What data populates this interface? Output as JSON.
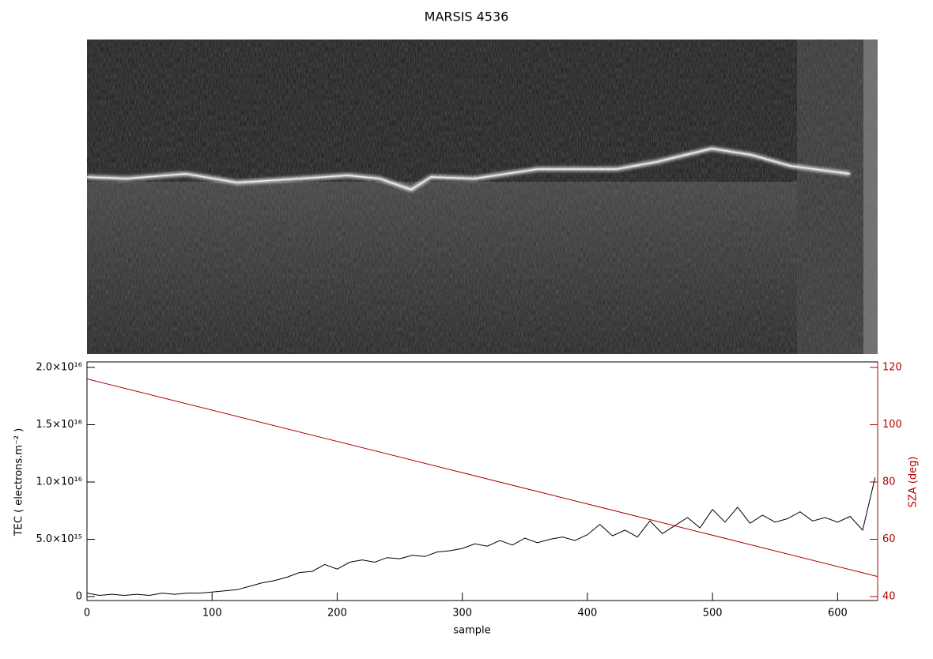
{
  "chart_data": {
    "type": "line",
    "title": "MARSIS 4536",
    "xlabel": "sample",
    "ylabel": "TEC ( electrons.m⁻² )",
    "y2label": "SZA (deg)",
    "xlim": [
      0,
      632
    ],
    "xticks": [
      0,
      100,
      200,
      300,
      400,
      500,
      600
    ],
    "ylim": [
      0,
      2e+16
    ],
    "yticks": [
      0,
      {
        "value": 5000000000000000.0,
        "label": "5.0×10¹⁵"
      },
      {
        "value": 1e+16,
        "label": "1.0×10¹⁶"
      },
      {
        "value": 1.5e+16,
        "label": "1.5×10¹⁶"
      },
      {
        "value": 2e+16,
        "label": "2.0×10¹⁶"
      }
    ],
    "y2lim": [
      40,
      120
    ],
    "y2ticks": [
      40,
      60,
      80,
      100,
      120
    ],
    "series": [
      {
        "color": "#000000",
        "x": [
          0,
          10,
          20,
          30,
          40,
          50,
          60,
          70,
          80,
          90,
          100,
          110,
          120,
          130,
          140,
          150,
          160,
          170,
          180,
          190,
          200,
          210,
          220,
          230,
          240,
          250,
          260,
          270,
          280,
          290,
          300,
          310,
          320,
          330,
          340,
          350,
          360,
          370,
          380,
          390,
          400,
          410,
          420,
          430,
          440,
          450,
          460,
          470,
          480,
          490,
          500,
          510,
          520,
          530,
          540,
          550,
          560,
          570,
          580,
          590,
          600,
          610,
          620,
          630
        ],
        "values": [
          300000000000000.0,
          100000000000000.0,
          200000000000000.0,
          100000000000000.0,
          200000000000000.0,
          100000000000000.0,
          300000000000000.0,
          200000000000000.0,
          300000000000000.0,
          300000000000000.0,
          400000000000000.0,
          500000000000000.0,
          600000000000000.0,
          900000000000000.0,
          1200000000000000.0,
          1400000000000000.0,
          1700000000000000.0,
          2100000000000000.0,
          2200000000000000.0,
          2800000000000000.0,
          2400000000000000.0,
          3000000000000000.0,
          3200000000000000.0,
          3000000000000000.0,
          3400000000000000.0,
          3300000000000000.0,
          3600000000000000.0,
          3500000000000000.0,
          3900000000000000.0,
          4000000000000000.0,
          4200000000000000.0,
          4600000000000000.0,
          4400000000000000.0,
          4900000000000000.0,
          4500000000000000.0,
          5100000000000000.0,
          4700000000000000.0,
          5000000000000000.0,
          5200000000000000.0,
          4900000000000000.0,
          5400000000000000.0,
          6300000000000000.0,
          5300000000000000.0,
          5800000000000000.0,
          5200000000000000.0,
          6600000000000000.0,
          5500000000000000.0,
          6200000000000000.0,
          6900000000000000.0,
          6000000000000000.0,
          7600000000000000.0,
          6500000000000000.0,
          7800000000000000.0,
          6400000000000000.0,
          7100000000000000.0,
          6500000000000000.0,
          6800000000000000.0,
          7400000000000000.0,
          6600000000000000.0,
          6900000000000000.0,
          6500000000000000.0,
          7000000000000000.0,
          5800000000000000.0,
          1.04e+16
        ]
      },
      {
        "color": "#b00000",
        "axis": "y2",
        "x": [
          0,
          632
        ],
        "values": [
          116,
          47
        ]
      }
    ]
  }
}
